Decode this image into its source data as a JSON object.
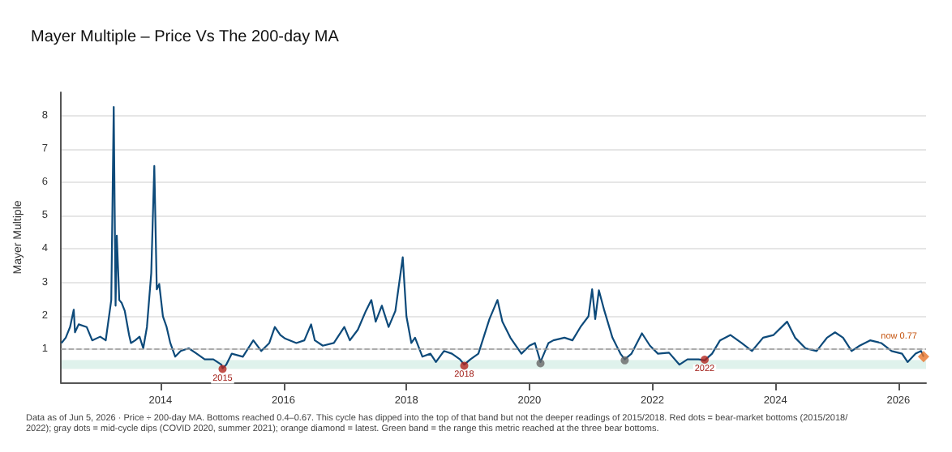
{
  "chart_data": {
    "type": "line",
    "title": "Mayer Multiple – Price Vs The 200-day MA",
    "ylabel": "Mayer Multiple",
    "annotations": [
      "Data as of Jun 5, 2026 · Price ÷ 200-day MA. Bottoms reached 0.4–0.67. This cycle has dipped into the top of that band but not the deeper readings of 2015/2018. Red dots = bear-market bottoms (2015/2018/2022); gray dots = mid-cycle dips (COVID 2020, summer 2021); orange diamond = latest. Green band = the range this metric reached at the three bear bottoms.",
      {
        "text": "2015",
        "x": 2015.01,
        "y": 0.4
      },
      {
        "text": "2018",
        "x": 2018.94,
        "y": 0.5
      },
      {
        "text": "2022",
        "x": 2022.85,
        "y": 0.68
      },
      {
        "text": "now 0.77",
        "x": 2026.41,
        "y": 0.77
      }
    ],
    "xlim": [
      2012.38,
      2026.45
    ],
    "xticks": [
      2014,
      2016,
      2018,
      2020,
      2022,
      2024,
      2026
    ],
    "ylim": [
      0,
      8.7
    ],
    "yticks": [
      1,
      2,
      3,
      4,
      5,
      6,
      7,
      8
    ],
    "grid": "y",
    "ref_lines": [
      {
        "axis": "y",
        "value": 1,
        "color": "#999999",
        "line_style": "dashed"
      }
    ],
    "bands": [
      {
        "axis": "y",
        "from": 0.4,
        "to": 0.67,
        "color": "#dff2ec"
      }
    ],
    "series": [
      {
        "color": "#0d4a7a",
        "marker": "none",
        "x": [
          2012.39,
          2012.46,
          2012.53,
          2012.59,
          2012.61,
          2012.67,
          2012.8,
          2012.89,
          2013.02,
          2013.11,
          2013.2,
          2013.24,
          2013.27,
          2013.29,
          2013.33,
          2013.37,
          2013.42,
          2013.49,
          2013.52,
          2013.59,
          2013.66,
          2013.72,
          2013.78,
          2013.85,
          2013.9,
          2013.94,
          2013.98,
          2014.04,
          2014.1,
          2014.16,
          2014.24,
          2014.33,
          2014.46,
          2014.59,
          2014.72,
          2014.86,
          2014.99,
          2015.01,
          2015.07,
          2015.16,
          2015.34,
          2015.51,
          2015.64,
          2015.77,
          2015.86,
          2015.95,
          2016.03,
          2016.21,
          2016.34,
          2016.45,
          2016.51,
          2016.64,
          2016.82,
          2016.99,
          2017.08,
          2017.21,
          2017.34,
          2017.43,
          2017.5,
          2017.6,
          2017.71,
          2017.82,
          2017.94,
          2018.0,
          2018.08,
          2018.14,
          2018.26,
          2018.39,
          2018.48,
          2018.61,
          2018.74,
          2018.87,
          2018.94,
          2019.04,
          2019.17,
          2019.35,
          2019.48,
          2019.56,
          2019.69,
          2019.87,
          2020.0,
          2020.09,
          2020.18,
          2020.31,
          2020.39,
          2020.57,
          2020.7,
          2020.83,
          2020.96,
          2021.02,
          2021.07,
          2021.13,
          2021.22,
          2021.35,
          2021.48,
          2021.55,
          2021.66,
          2021.83,
          2021.96,
          2022.09,
          2022.27,
          2022.44,
          2022.57,
          2022.75,
          2022.85,
          2022.97,
          2023.1,
          2023.27,
          2023.45,
          2023.62,
          2023.8,
          2023.97,
          2024.19,
          2024.32,
          2024.49,
          2024.67,
          2024.84,
          2024.97,
          2025.1,
          2025.24,
          2025.37,
          2025.54,
          2025.72,
          2025.89,
          2026.06,
          2026.15,
          2026.28,
          2026.37,
          2026.41
        ],
        "values": [
          1.18,
          1.34,
          1.66,
          2.18,
          1.5,
          1.74,
          1.66,
          1.26,
          1.37,
          1.26,
          2.47,
          8.26,
          2.3,
          4.4,
          2.47,
          2.38,
          2.14,
          1.42,
          1.18,
          1.26,
          1.37,
          1.02,
          1.66,
          3.27,
          6.49,
          2.79,
          2.95,
          1.98,
          1.66,
          1.18,
          0.77,
          0.94,
          1.02,
          0.86,
          0.69,
          0.69,
          0.53,
          0.42,
          0.53,
          0.86,
          0.77,
          1.26,
          0.94,
          1.18,
          1.66,
          1.42,
          1.31,
          1.18,
          1.26,
          1.74,
          1.26,
          1.1,
          1.18,
          1.66,
          1.26,
          1.58,
          2.14,
          2.47,
          1.82,
          2.3,
          1.66,
          2.14,
          3.75,
          1.98,
          1.18,
          1.34,
          0.77,
          0.86,
          0.61,
          0.94,
          0.86,
          0.69,
          0.53,
          0.69,
          0.86,
          1.9,
          2.47,
          1.82,
          1.34,
          0.86,
          1.1,
          1.18,
          0.61,
          1.18,
          1.26,
          1.34,
          1.26,
          1.66,
          1.98,
          2.79,
          1.9,
          2.76,
          2.14,
          1.34,
          0.86,
          0.69,
          0.86,
          1.47,
          1.1,
          0.86,
          0.89,
          0.53,
          0.69,
          0.69,
          0.66,
          0.86,
          1.26,
          1.42,
          1.18,
          0.94,
          1.34,
          1.42,
          1.82,
          1.34,
          1.02,
          0.94,
          1.34,
          1.5,
          1.34,
          0.94,
          1.1,
          1.26,
          1.18,
          0.94,
          0.86,
          0.61,
          0.86,
          0.94,
          0.77
        ]
      },
      {
        "type": "scatter",
        "color": "#b3261e",
        "marker": "circle",
        "x": [
          2015.01,
          2018.94,
          2022.85
        ],
        "values": [
          0.4,
          0.5,
          0.68
        ]
      },
      {
        "type": "scatter",
        "color": "#666666",
        "marker": "circle",
        "x": [
          2020.18,
          2021.55
        ],
        "values": [
          0.57,
          0.66
        ]
      },
      {
        "type": "scatter",
        "color": "#e8742a",
        "marker": "diamond",
        "x": [
          2026.41
        ],
        "values": [
          0.77
        ]
      }
    ]
  }
}
